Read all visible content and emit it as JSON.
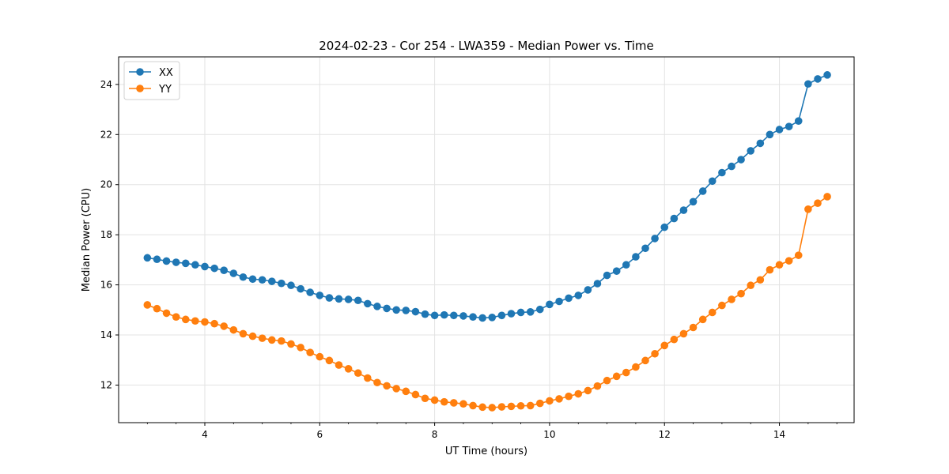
{
  "chart_data": {
    "type": "line",
    "title": "2024-02-23 - Cor 254 - LWA359 - Median Power vs. Time",
    "xlabel": "UT Time (hours)",
    "ylabel": "Median Power (CPU)",
    "xlim": [
      2.5,
      15.3
    ],
    "ylim": [
      10.5,
      25.1
    ],
    "xticks": [
      4,
      6,
      8,
      10,
      12,
      14
    ],
    "yticks": [
      12,
      14,
      16,
      18,
      20,
      22,
      24
    ],
    "grid": true,
    "legend_position": "top-left",
    "x": [
      3.0,
      3.167,
      3.333,
      3.5,
      3.667,
      3.833,
      4.0,
      4.167,
      4.333,
      4.5,
      4.667,
      4.833,
      5.0,
      5.167,
      5.333,
      5.5,
      5.667,
      5.833,
      6.0,
      6.167,
      6.333,
      6.5,
      6.667,
      6.833,
      7.0,
      7.167,
      7.333,
      7.5,
      7.667,
      7.833,
      8.0,
      8.167,
      8.333,
      8.5,
      8.667,
      8.833,
      9.0,
      9.167,
      9.333,
      9.5,
      9.667,
      9.833,
      10.0,
      10.167,
      10.333,
      10.5,
      10.667,
      10.833,
      11.0,
      11.167,
      11.333,
      11.5,
      11.667,
      11.833,
      12.0,
      12.167,
      12.333,
      12.5,
      12.667,
      12.833,
      13.0,
      13.167,
      13.333,
      13.5,
      13.667,
      13.833,
      14.0,
      14.167,
      14.333,
      14.5,
      14.667,
      14.833
    ],
    "series": [
      {
        "name": "XX",
        "color": "#1f77b4",
        "values": [
          17.08,
          17.02,
          16.95,
          16.9,
          16.86,
          16.8,
          16.73,
          16.66,
          16.58,
          16.46,
          16.31,
          16.23,
          16.2,
          16.14,
          16.06,
          15.98,
          15.84,
          15.7,
          15.58,
          15.48,
          15.44,
          15.42,
          15.38,
          15.25,
          15.14,
          15.06,
          15.0,
          14.98,
          14.93,
          14.83,
          14.78,
          14.8,
          14.78,
          14.76,
          14.72,
          14.68,
          14.7,
          14.78,
          14.85,
          14.9,
          14.92,
          15.02,
          15.22,
          15.34,
          15.47,
          15.58,
          15.8,
          16.05,
          16.38,
          16.55,
          16.8,
          17.12,
          17.46,
          17.85,
          18.3,
          18.65,
          18.98,
          19.32,
          19.74,
          20.14,
          20.48,
          20.73,
          21.0,
          21.35,
          21.65,
          22.0,
          22.2,
          22.32,
          22.54,
          24.02,
          24.22,
          24.38
        ]
      },
      {
        "name": "YY",
        "color": "#ff7f0e",
        "values": [
          15.2,
          15.05,
          14.87,
          14.72,
          14.62,
          14.56,
          14.52,
          14.45,
          14.35,
          14.2,
          14.05,
          13.95,
          13.87,
          13.8,
          13.76,
          13.64,
          13.5,
          13.3,
          13.13,
          12.98,
          12.8,
          12.65,
          12.48,
          12.28,
          12.1,
          11.97,
          11.86,
          11.75,
          11.62,
          11.47,
          11.4,
          11.33,
          11.29,
          11.25,
          11.18,
          11.12,
          11.1,
          11.13,
          11.15,
          11.17,
          11.18,
          11.27,
          11.37,
          11.45,
          11.55,
          11.65,
          11.78,
          11.96,
          12.18,
          12.35,
          12.5,
          12.72,
          12.98,
          13.25,
          13.58,
          13.82,
          14.05,
          14.3,
          14.62,
          14.9,
          15.18,
          15.42,
          15.65,
          15.98,
          16.2,
          16.6,
          16.8,
          16.96,
          17.18,
          19.02,
          19.26,
          19.52
        ]
      }
    ]
  }
}
